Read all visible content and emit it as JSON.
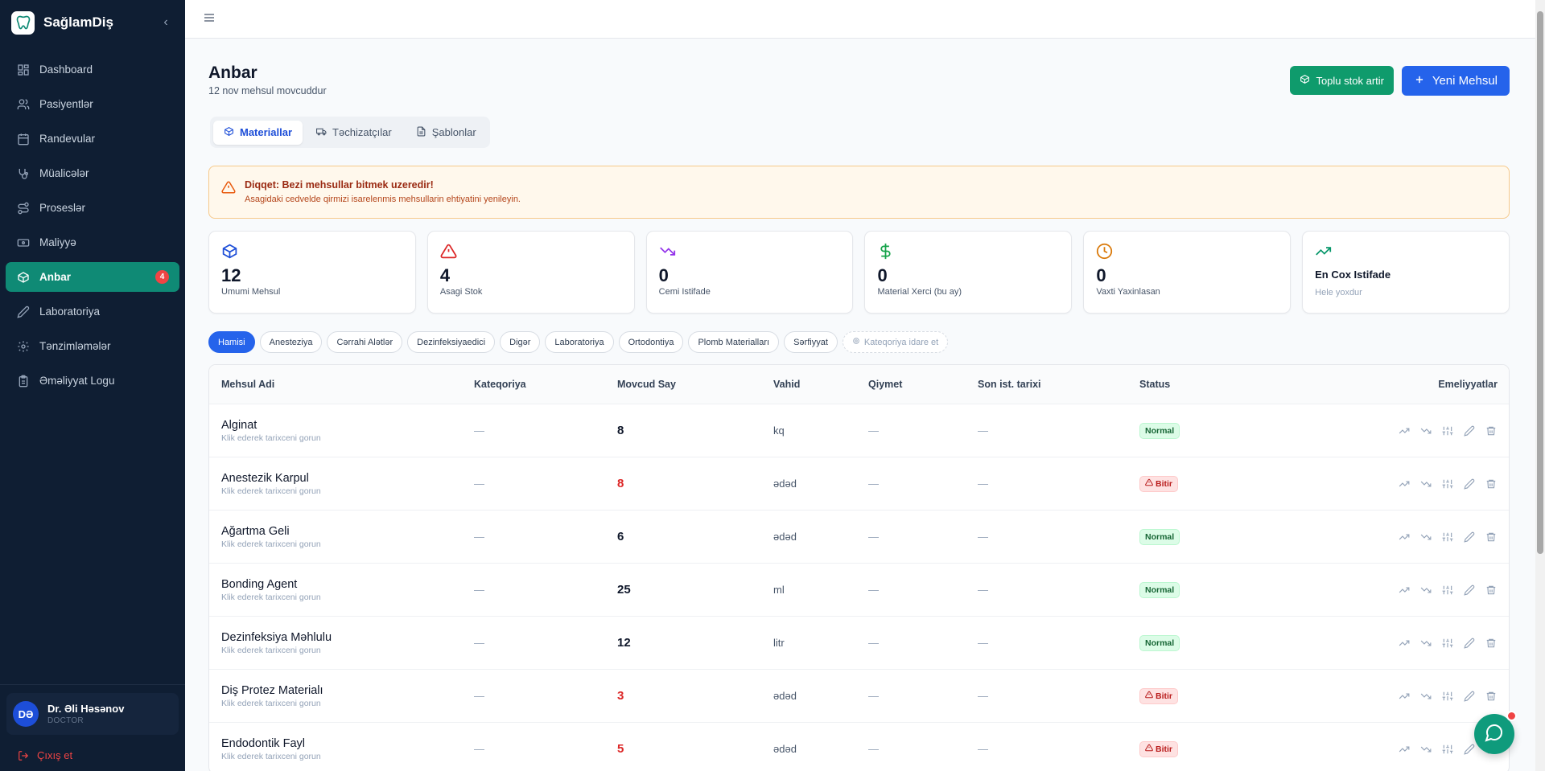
{
  "brand": {
    "name": "SağlamDiş"
  },
  "sidebar": {
    "items": [
      {
        "label": "Dashboard",
        "icon": "dashboard-icon"
      },
      {
        "label": "Pasiyentlər",
        "icon": "users-icon"
      },
      {
        "label": "Randevular",
        "icon": "calendar-icon"
      },
      {
        "label": "Müalicələr",
        "icon": "stethoscope-icon"
      },
      {
        "label": "Proseslər",
        "icon": "route-icon"
      },
      {
        "label": "Maliyyə",
        "icon": "banknote-icon"
      },
      {
        "label": "Anbar",
        "icon": "package-icon",
        "active": true,
        "badge": "4"
      },
      {
        "label": "Laboratoriya",
        "icon": "pencil-icon"
      },
      {
        "label": "Tənzimləmələr",
        "icon": "settings-icon"
      },
      {
        "label": "Əməliyyat Logu",
        "icon": "clipboard-icon"
      }
    ]
  },
  "user": {
    "initials": "DƏ",
    "name": "Dr. Əli Həsənov",
    "role": "DOCTOR"
  },
  "logout_label": "Çıxış et",
  "page": {
    "title": "Anbar",
    "subtitle": "12 nov mehsul movcuddur"
  },
  "buttons": {
    "bulk": "Toplu stok artir",
    "new": "Yeni Mehsul"
  },
  "tabs": [
    {
      "label": "Materiallar",
      "active": true
    },
    {
      "label": "Təchizatçılar"
    },
    {
      "label": "Şablonlar"
    }
  ],
  "alert": {
    "title": "Diqqet: Bezi mehsullar bitmek uzeredir!",
    "text": "Asagidaki cedvelde qirmizi isarelenmis mehsullarin ehtiyatini yenileyin."
  },
  "stats": [
    {
      "value": "12",
      "label": "Umumi Mehsul",
      "icon": "box-icon",
      "color": "#1d4ed8"
    },
    {
      "value": "4",
      "label": "Asagi Stok",
      "icon": "warning-icon",
      "color": "#dc2626"
    },
    {
      "value": "0",
      "label": "Cemi Istifade",
      "icon": "trending-down-icon",
      "color": "#9333ea"
    },
    {
      "value": "0",
      "label": "Material Xerci (bu ay)",
      "icon": "dollar-icon",
      "color": "#16a34a"
    },
    {
      "value": "0",
      "label": "Vaxti Yaxinlasan",
      "icon": "clock-icon",
      "color": "#d97706"
    },
    {
      "title": "En Cox Istifade",
      "hint": "Hele yoxdur",
      "icon": "trending-up-icon",
      "color": "#059669"
    }
  ],
  "filters": [
    "Hamisi",
    "Anesteziya",
    "Cərrahi Alətlər",
    "Dezinfeksiyaedici",
    "Digər",
    "Laboratoriya",
    "Ortodontiya",
    "Plomb Materialları",
    "Sərfiyyat"
  ],
  "manage_categories": "Kateqoriya idare et",
  "table": {
    "headers": [
      "Mehsul Adi",
      "Kateqoriya",
      "Movcud Say",
      "Vahid",
      "Qiymet",
      "Son ist. tarixi",
      "Status",
      "Emeliyyatlar"
    ],
    "row_hint": "Klik ederek tarixceni gorun",
    "rows": [
      {
        "name": "Alginat",
        "category": "—",
        "qty": "8",
        "unit": "kq",
        "price": "—",
        "last": "—",
        "status": "Normal",
        "low": false
      },
      {
        "name": "Anestezik Karpul",
        "category": "—",
        "qty": "8",
        "unit": "ədəd",
        "price": "—",
        "last": "—",
        "status": "Bitir",
        "low": true
      },
      {
        "name": "Ağartma Geli",
        "category": "—",
        "qty": "6",
        "unit": "ədəd",
        "price": "—",
        "last": "—",
        "status": "Normal",
        "low": false
      },
      {
        "name": "Bonding Agent",
        "category": "—",
        "qty": "25",
        "unit": "ml",
        "price": "—",
        "last": "—",
        "status": "Normal",
        "low": false
      },
      {
        "name": "Dezinfeksiya Məhlulu",
        "category": "—",
        "qty": "12",
        "unit": "litr",
        "price": "—",
        "last": "—",
        "status": "Normal",
        "low": false
      },
      {
        "name": "Diş Protez Materialı",
        "category": "—",
        "qty": "3",
        "unit": "ədəd",
        "price": "—",
        "last": "—",
        "status": "Bitir",
        "low": true
      },
      {
        "name": "Endodontik Fayl",
        "category": "—",
        "qty": "5",
        "unit": "ədəd",
        "price": "—",
        "last": "—",
        "status": "Bitir",
        "low": true
      }
    ]
  },
  "colors": {
    "sidebar": "#0f1e33",
    "active": "#0f8a75",
    "primary": "#2563eb",
    "success": "#0f9b6c",
    "danger": "#dc2626"
  }
}
